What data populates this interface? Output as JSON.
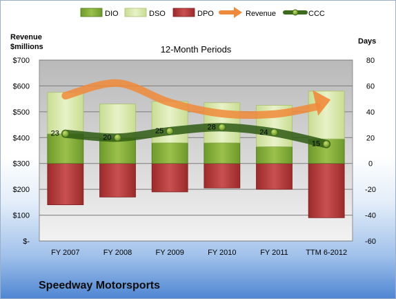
{
  "company_name": "Speedway Motorsports",
  "chart_data": {
    "type": "bar",
    "title": "12-Month Periods",
    "left_axis_label": "Revenue\n$millions",
    "right_axis_label": "Days",
    "categories": [
      "FY 2007",
      "FY 2008",
      "FY 2009",
      "FY 2010",
      "FY 2011",
      "TTM 6-2012"
    ],
    "left_ticks": [
      "$-",
      "$100",
      "$200",
      "$300",
      "$400",
      "$500",
      "$600",
      "$700"
    ],
    "right_ticks": [
      "-60",
      "-40",
      "-20",
      "0",
      "20",
      "40",
      "60",
      "80"
    ],
    "ylim_left": [
      0,
      700
    ],
    "ylim_right": [
      -60,
      80
    ],
    "series": [
      {
        "name": "DIO",
        "values": [
          0,
          0,
          0,
          0,
          0,
          0
        ],
        "color": "#8db43a",
        "axis": "right"
      },
      {
        "name": "DSO",
        "values": [
          55,
          46,
          48,
          47,
          45,
          56
        ],
        "color": "#d7e8a9",
        "axis": "right"
      },
      {
        "name": "DPO",
        "values": [
          -32,
          -26,
          -22,
          -19,
          -20,
          -42
        ],
        "color": "#b33a3a",
        "axis": "right"
      },
      {
        "name": "Revenue",
        "values": [
          562,
          611,
          536,
          493,
          491,
          533
        ],
        "color": "#f08a3a",
        "axis": "left"
      },
      {
        "name": "CCC",
        "values": [
          23,
          20,
          25,
          28,
          24,
          15
        ],
        "color": "#3a6a1a",
        "axis": "right"
      }
    ],
    "stack_segments": {
      "dio": [
        [
          0,
          23
        ],
        [
          0,
          20
        ],
        [
          0,
          16
        ],
        [
          0,
          16
        ],
        [
          0,
          13
        ],
        [
          0,
          19
        ]
      ],
      "dso": [
        [
          23,
          55
        ],
        [
          20,
          46
        ],
        [
          16,
          48
        ],
        [
          16,
          47
        ],
        [
          13,
          45
        ],
        [
          19,
          56
        ]
      ],
      "dpo": [
        [
          -32,
          0
        ],
        [
          -26,
          0
        ],
        [
          -22,
          0
        ],
        [
          -19,
          0
        ],
        [
          -20,
          0
        ],
        [
          -42,
          0
        ]
      ]
    },
    "ccc_labels": [
      "23",
      "20",
      "25",
      "28",
      "24",
      "15"
    ],
    "grid": true,
    "legend_position": "top"
  }
}
